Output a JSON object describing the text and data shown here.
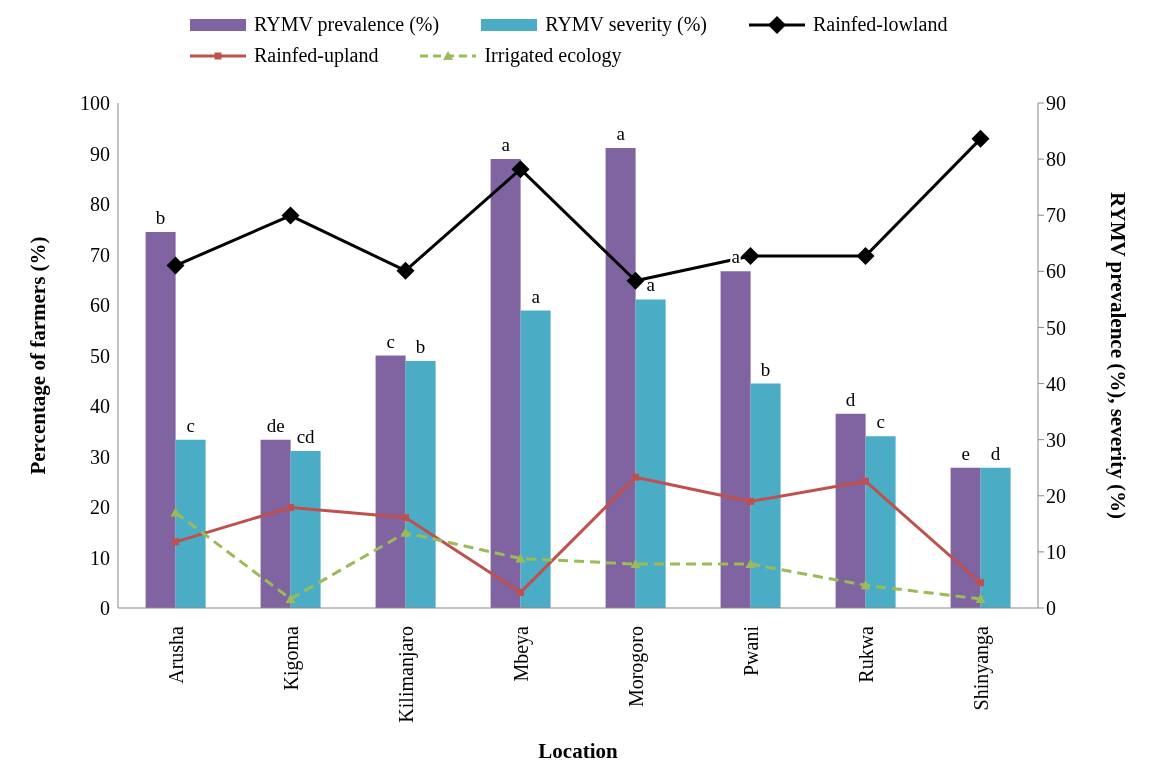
{
  "chart_data": {
    "type": "bar",
    "xlabel": "Location",
    "ylabel": "Percentage of farmers (%)",
    "y2label": "RYMV prevalence (%), severity (%)",
    "categories": [
      "Arusha",
      "Kigoma",
      "Kilimanjaro",
      "Mbeya",
      "Morogoro",
      "Pwani",
      "Rukwa",
      "Shinyanga"
    ],
    "series": [
      {
        "name": "RYMV prevalence (%)",
        "axis": "y2",
        "color": "#8064a2",
        "values": [
          67,
          30,
          45,
          80,
          82,
          60,
          34.6,
          25
        ],
        "value_labels": [
          "b",
          "de",
          "c",
          "a",
          "a",
          "a",
          "d",
          "e"
        ]
      },
      {
        "name": "RYMV severity (%)",
        "axis": "y2",
        "color": "#4bacc6",
        "values": [
          30,
          28,
          44,
          53,
          55,
          40,
          30.6,
          25
        ],
        "value_labels": [
          "c",
          "cd",
          "b",
          "a",
          "a",
          "b",
          "c",
          "d"
        ]
      },
      {
        "name": "Rainfed-lowland",
        "type": "line",
        "color": "#000000",
        "marker": "diamond",
        "values": [
          67.8,
          77.7,
          66.8,
          86.9,
          64.8,
          69.7,
          69.7,
          92.9
        ]
      },
      {
        "name": "Rainfed-upland",
        "type": "line",
        "color": "#c0504d",
        "marker": "square",
        "values": [
          13.1,
          19.9,
          17.9,
          3.1,
          25.9,
          21.1,
          25.1,
          5.0
        ]
      },
      {
        "name": "Irrigated ecology",
        "type": "line",
        "color": "#9bbb59",
        "marker": "triangle",
        "line_style": "dashed",
        "values": [
          18.9,
          1.8,
          14.9,
          9.8,
          8.7,
          8.7,
          4.5,
          1.8
        ]
      }
    ],
    "ylim": [
      0,
      100
    ],
    "yticks": [
      0,
      10,
      20,
      30,
      40,
      50,
      60,
      70,
      80,
      90,
      100
    ],
    "y2lim": [
      0,
      90
    ],
    "y2ticks": [
      0,
      10,
      20,
      30,
      40,
      50,
      60,
      70,
      80,
      90
    ],
    "grid": false,
    "legend": "top"
  }
}
